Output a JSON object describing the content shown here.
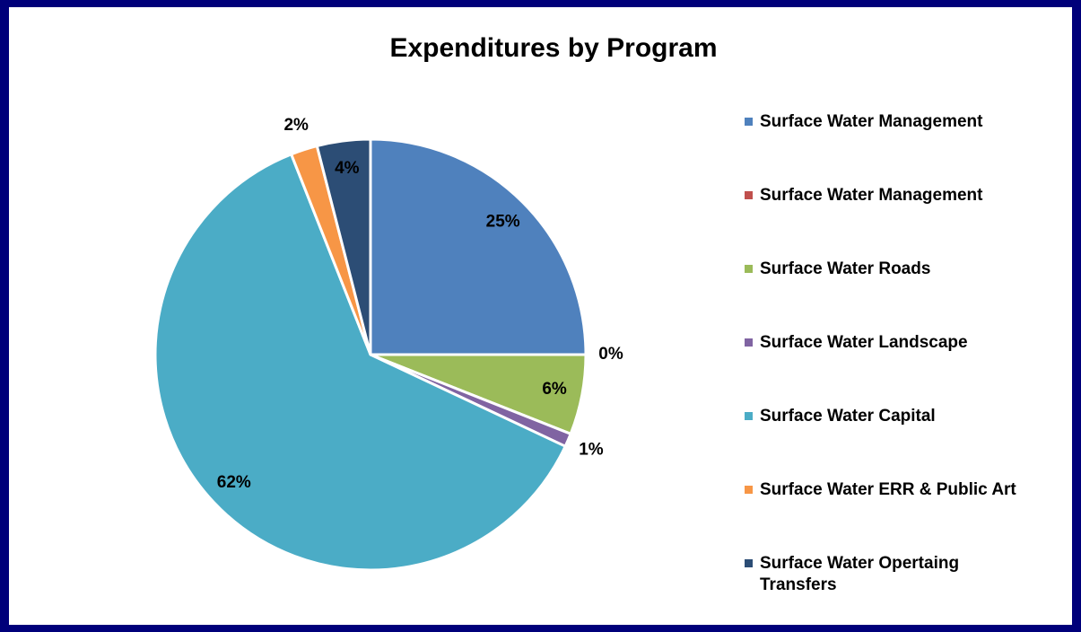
{
  "chart_data": {
    "type": "pie",
    "title": "Expenditures by Program",
    "categories": [
      "Surface Water Management",
      "Surface Water Management",
      "Surface Water Roads",
      "Surface Water Landscape",
      "Surface Water Capital",
      "Surface Water ERR & Public Art",
      "Surface Water Opertaing Transfers"
    ],
    "values": [
      25,
      0,
      6,
      1,
      62,
      2,
      4
    ],
    "value_labels": [
      "25%",
      "0%",
      "6%",
      "1%",
      "62%",
      "2%",
      "4%"
    ],
    "colors": [
      "#4f81bd",
      "#c0504d",
      "#9bbb59",
      "#8064a2",
      "#4bacc6",
      "#f79646",
      "#2c4d75"
    ],
    "legend": "right"
  }
}
